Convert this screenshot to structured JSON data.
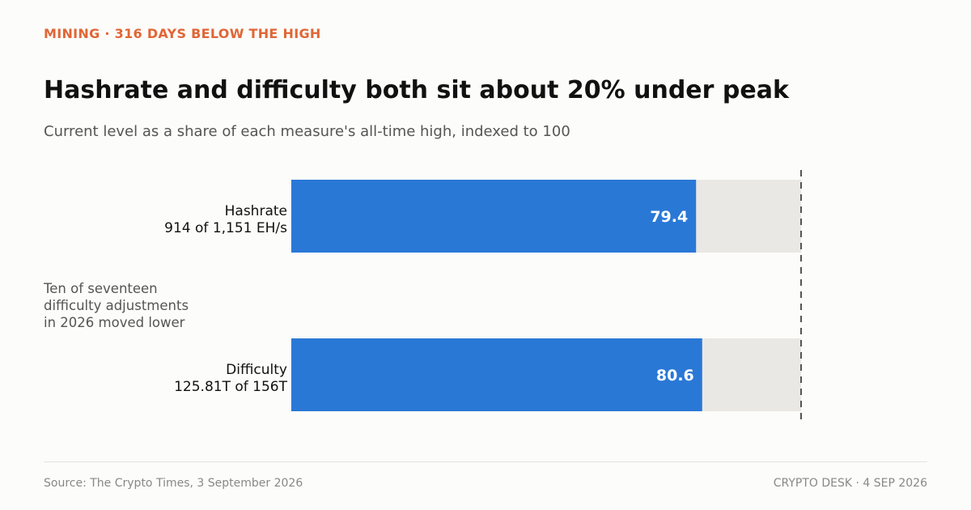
{
  "header": {
    "kicker": "MINING · 316 DAYS BELOW THE HIGH",
    "title": "Hashrate and difficulty both sit about 20% under peak",
    "subtitle": "Current level as a share of each measure's all-time high, indexed to 100"
  },
  "annotation": {
    "lines": [
      "Ten of seventeen",
      "difficulty adjustments",
      "in 2026 moved lower"
    ]
  },
  "footer": {
    "source": "Source: The Crypto Times, 3 September 2026",
    "credit": "CRYPTO DESK  ·  4 SEP 2026"
  },
  "colors": {
    "accent": "#e06636",
    "bar": "#2a78d6",
    "track": "#eae8e4",
    "reference_line": "#555555",
    "value_label": "#ffffff"
  },
  "chart_data": {
    "type": "bar",
    "orientation": "horizontal",
    "categories": [
      "Hashrate",
      "Difficulty"
    ],
    "category_details": [
      "914 of 1,151 EH/s",
      "125.81T of 156T"
    ],
    "values": [
      79.4,
      80.6
    ],
    "value_labels": [
      "79.4",
      "80.6"
    ],
    "xlim": [
      0,
      100
    ],
    "reference_line": 100,
    "grid": false,
    "legend": "none"
  }
}
